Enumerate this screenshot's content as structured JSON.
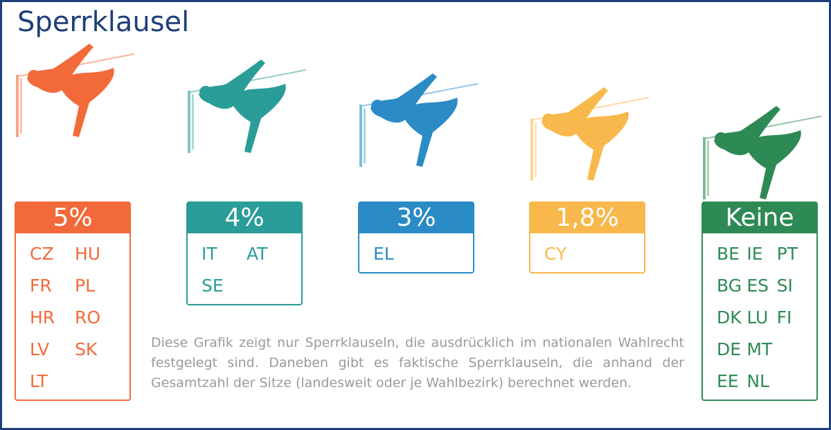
{
  "title": "Sperrklausel",
  "groups": [
    {
      "threshold": "5%",
      "color": "#f26a3a",
      "rows": [
        [
          "CZ",
          "HU"
        ],
        [
          "FR",
          "PL"
        ],
        [
          "HR",
          "RO"
        ],
        [
          "LV",
          "SK"
        ],
        [
          "LT"
        ]
      ]
    },
    {
      "threshold": "4%",
      "color": "#2a9d98",
      "rows": [
        [
          "IT",
          "AT"
        ],
        [
          "SE"
        ]
      ]
    },
    {
      "threshold": "3%",
      "color": "#2b8bc6",
      "rows": [
        [
          "EL"
        ]
      ]
    },
    {
      "threshold": "1,8%",
      "color": "#f8b84b",
      "rows": [
        [
          "CY"
        ]
      ]
    },
    {
      "threshold": "Keine",
      "color": "#2e8a55",
      "rows": [
        [
          "BE",
          "IE",
          "PT"
        ],
        [
          "BG",
          "ES",
          "SI"
        ],
        [
          "DK",
          "LU",
          "FI"
        ],
        [
          "DE",
          "MT"
        ],
        [
          "EE",
          "NL"
        ]
      ]
    }
  ],
  "note": "Diese Grafik zeigt nur Sperrklauseln, die ausdrücklich im nationalen Wahlrecht festgelegt sind. Daneben gibt es faktische Sperrklauseln, die anhand der Gesamtzahl der Sitze (landesweit oder je Wahlbezirk) berechnet werden."
}
